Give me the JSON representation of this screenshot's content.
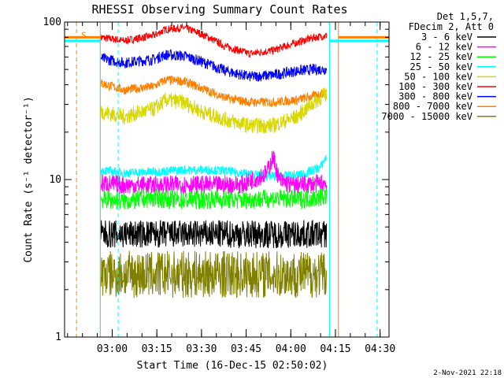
{
  "chart_data": {
    "type": "line",
    "title": "RHESSI Observing Summary Count Rates",
    "xlabel": "Start Time (16-Dec-15 02:50:02)",
    "ylabel": "Count Rate (s⁻¹ detector⁻¹)",
    "y_scale": "log",
    "ylim": [
      1,
      100
    ],
    "y_ticks": [
      {
        "value": 1,
        "label": "1"
      },
      {
        "value": 10,
        "label": "10"
      },
      {
        "value": 100,
        "label": "100"
      }
    ],
    "x_ticks": [
      {
        "minutes": 10,
        "label": "03:00"
      },
      {
        "minutes": 25,
        "label": "03:15"
      },
      {
        "minutes": 40,
        "label": "03:30"
      },
      {
        "minutes": 55,
        "label": "03:45"
      },
      {
        "minutes": 70,
        "label": "04:00"
      },
      {
        "minutes": 85,
        "label": "04:15"
      },
      {
        "minutes": 100,
        "label": "04:30"
      }
    ],
    "xlim_minutes": [
      -6,
      103
    ],
    "legend": {
      "placement": "right",
      "header": [
        "Det 1,5,7,",
        "FDecim 2, Att 0"
      ],
      "entries": [
        {
          "label": "3 - 6 keV",
          "color": "#000000"
        },
        {
          "label": "6 - 12 keV",
          "color": "#ff00ff"
        },
        {
          "label": "12 - 25 keV",
          "color": "#00ff00"
        },
        {
          "label": "25 - 50 keV",
          "color": "#00ffff"
        },
        {
          "label": "50 - 100 keV",
          "color": "#d8d800"
        },
        {
          "label": "100 - 300 keV",
          "color": "#ff0000"
        },
        {
          "label": "300 - 800 keV",
          "color": "#0000ff"
        },
        {
          "label": "800 - 7000 keV",
          "color": "#ff8000"
        },
        {
          "label": "7000 - 15000 keV",
          "color": "#808000"
        }
      ]
    },
    "series": [
      {
        "name": "100 - 300 keV",
        "color": "#ff0000",
        "t": [
          6,
          14,
          24,
          28,
          34,
          40,
          48,
          56,
          64,
          72,
          78,
          82
        ],
        "values": [
          80,
          76,
          82,
          90,
          92,
          84,
          70,
          63,
          66,
          74,
          80,
          82
        ]
      },
      {
        "name": "300 - 800 keV",
        "color": "#0000ff",
        "t": [
          6,
          14,
          24,
          28,
          34,
          40,
          48,
          56,
          64,
          72,
          78,
          82
        ],
        "values": [
          59,
          55,
          58,
          62,
          61,
          56,
          49,
          45,
          46,
          49,
          50,
          50
        ]
      },
      {
        "name": "800 - 7000 keV",
        "color": "#ff8000",
        "t": [
          6,
          14,
          24,
          28,
          34,
          40,
          48,
          56,
          64,
          72,
          78,
          82
        ],
        "values": [
          41,
          37,
          39,
          43,
          42,
          38,
          33,
          31,
          31,
          32,
          34,
          36
        ]
      },
      {
        "name": "50 - 100 keV",
        "color": "#d8d800",
        "t": [
          6,
          14,
          24,
          28,
          34,
          40,
          48,
          56,
          64,
          72,
          78,
          82
        ],
        "values": [
          27,
          25,
          28,
          32,
          31,
          27,
          24,
          22,
          22,
          25,
          31,
          35
        ]
      },
      {
        "name": "25 - 50 keV",
        "color": "#00ffff",
        "t": [
          6,
          14,
          24,
          34,
          44,
          54,
          62,
          68,
          74,
          80,
          82
        ],
        "values": [
          11.5,
          11,
          11.2,
          11.5,
          11.5,
          11,
          10.5,
          10.5,
          10.8,
          12,
          14
        ]
      },
      {
        "name": "6 - 12 keV",
        "color": "#ff00ff",
        "t": [
          6,
          14,
          24,
          34,
          44,
          54,
          62,
          64,
          66,
          70,
          76,
          82
        ],
        "values": [
          9.5,
          9.2,
          9.2,
          9.3,
          9.2,
          9.3,
          11,
          14,
          10,
          9.2,
          9.3,
          9.5
        ]
      },
      {
        "name": "12 - 25 keV",
        "color": "#00ff00",
        "t": [
          6,
          14,
          24,
          34,
          44,
          54,
          64,
          74,
          82
        ],
        "values": [
          7.5,
          7.3,
          7.6,
          7.4,
          7.5,
          7.4,
          7.6,
          7.5,
          7.8
        ]
      },
      {
        "name": "3 - 6 keV",
        "color": "#000000",
        "t": [
          6,
          14,
          24,
          34,
          44,
          54,
          64,
          74,
          82
        ],
        "values": [
          4.5,
          4.5,
          4.5,
          4.5,
          4.5,
          4.5,
          4.5,
          4.5,
          4.5
        ]
      },
      {
        "name": "7000 - 15000 keV",
        "color": "#808000",
        "t": [
          6,
          14,
          24,
          34,
          44,
          54,
          64,
          74,
          82
        ],
        "values": [
          2.5,
          2.5,
          2.5,
          2.5,
          2.5,
          2.5,
          2.5,
          2.5,
          2.5
        ]
      }
    ],
    "markers": {
      "vertical_lines": [
        {
          "minutes": -2,
          "style": "dashed",
          "color": "#ff8000"
        },
        {
          "minutes": 6,
          "style": "solid",
          "color": "#ff8000"
        },
        {
          "minutes": 6,
          "style": "solid",
          "color": "#00ffff"
        },
        {
          "minutes": 12,
          "style": "dashed",
          "color": "#00ffff"
        },
        {
          "minutes": 83,
          "style": "solid",
          "color": "#00ffff"
        },
        {
          "minutes": 83,
          "style": "dashed",
          "color": "#00ffff"
        },
        {
          "minutes": 86,
          "style": "solid",
          "color": "#ff8000"
        },
        {
          "minutes": 99,
          "style": "dashed",
          "color": "#00ffff"
        }
      ],
      "saa_label": "S",
      "saa_bar_value": 80,
      "night_bar_value": 76
    },
    "timestamp": "2-Nov-2021 22:18"
  }
}
